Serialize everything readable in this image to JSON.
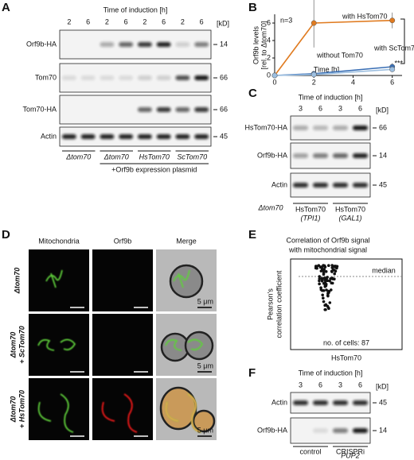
{
  "panels": {
    "A": {
      "label": "A",
      "header": "Time of induction [h]",
      "times": [
        2,
        6,
        2,
        6,
        2,
        6,
        2,
        6
      ],
      "unit": "[kD]",
      "rows": [
        "Orf9b-HA",
        "Tom70",
        "Tom70-HA",
        "Actin"
      ],
      "markers": [
        14,
        66,
        66,
        45
      ],
      "strains": [
        "Δtom70",
        "Δtom70",
        "HsTom70",
        "ScTom70"
      ],
      "plasmid": "+Orf9b expression plasmid"
    },
    "B": {
      "label": "B"
    },
    "C": {
      "label": "C",
      "header": "Time of induction [h]",
      "times": [
        3,
        6,
        3,
        6
      ],
      "unit": "[kD]",
      "rows": [
        "HsTom70-HA",
        "Orf9b-HA",
        "Actin"
      ],
      "markers": [
        66,
        14,
        45
      ],
      "strain": "Δtom70",
      "groups": [
        [
          "HsTom70",
          "(TPI1)"
        ],
        [
          "HsTom70",
          "(GAL1)"
        ]
      ]
    },
    "D": {
      "label": "D",
      "columns": [
        "Mitochondria",
        "Orf9b",
        "Merge"
      ],
      "rows": [
        [
          "Δtom70"
        ],
        [
          "Δtom70",
          "+ ScTom70"
        ],
        [
          "Δtom70",
          "+ HsTom70"
        ]
      ],
      "scale_bar": "5 μm"
    },
    "E": {
      "label": "E",
      "title": [
        "Correlation of Orf9b signal",
        "with mitochondrial signal"
      ],
      "ylabel": [
        "Pearson's",
        "correlation coefficient"
      ],
      "median": "median",
      "cells": "no. of cells: 87",
      "group": "HsTom70"
    },
    "F": {
      "label": "F",
      "header": "Time of induction [h]",
      "times": [
        3,
        6,
        3,
        6
      ],
      "unit": "[kD]",
      "rows": [
        "Actin",
        "Orf9b-HA"
      ],
      "markers": [
        45,
        14
      ],
      "groups": [
        [
          "control"
        ],
        [
          "CRISPRi",
          "PUP2"
        ]
      ]
    }
  },
  "chart_data": {
    "type": "line",
    "xlabel": "Time [h]",
    "ylabel": [
      "Orf9b levels",
      "[rel. to Δtom70]"
    ],
    "x": [
      0,
      2,
      6
    ],
    "xlim": [
      0,
      6.5
    ],
    "xticks": [
      0,
      2,
      4,
      6
    ],
    "ylim": [
      0,
      7
    ],
    "yticks": [
      0,
      2,
      4,
      6
    ],
    "annotations": [
      "n=3",
      "***"
    ],
    "series": [
      {
        "name": "with HsTom70",
        "color": "#e07b20",
        "values": [
          0,
          6,
          6.3
        ],
        "errors": [
          0,
          2.8,
          0.9
        ]
      },
      {
        "name": "with ScTom70",
        "color": "#3a6fb5",
        "values": [
          0,
          0.2,
          1.0
        ],
        "errors": [
          0,
          0.2,
          0.4
        ]
      },
      {
        "name": "without Tom70",
        "color": "#9dbfe0",
        "values": [
          0,
          0.1,
          0.7
        ],
        "errors": [
          0,
          0.1,
          0.3
        ]
      }
    ]
  }
}
